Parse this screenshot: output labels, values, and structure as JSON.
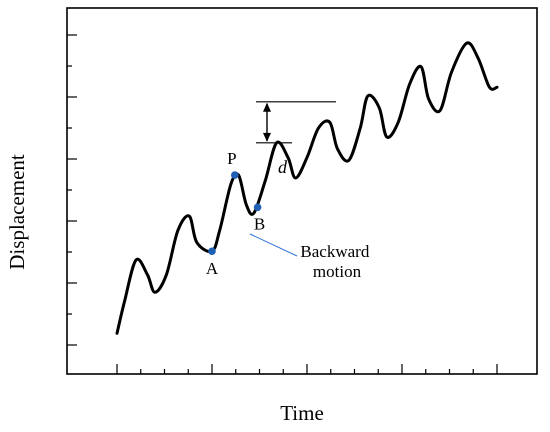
{
  "chart_data": {
    "type": "line",
    "xlabel": "Time",
    "ylabel": "Displacement",
    "grid": false,
    "curve": {
      "color": "#000000",
      "points": [
        [
          0.0,
          0.04
        ],
        [
          0.02,
          0.15
        ],
        [
          0.05,
          0.29
        ],
        [
          0.08,
          0.24
        ],
        [
          0.1,
          0.18
        ],
        [
          0.13,
          0.24
        ],
        [
          0.16,
          0.39
        ],
        [
          0.19,
          0.44
        ],
        [
          0.21,
          0.35
        ],
        [
          0.25,
          0.32
        ],
        [
          0.27,
          0.39
        ],
        [
          0.3,
          0.55
        ],
        [
          0.32,
          0.58
        ],
        [
          0.34,
          0.48
        ],
        [
          0.36,
          0.45
        ],
        [
          0.39,
          0.56
        ],
        [
          0.42,
          0.69
        ],
        [
          0.45,
          0.64
        ],
        [
          0.47,
          0.57
        ],
        [
          0.5,
          0.64
        ],
        [
          0.53,
          0.74
        ],
        [
          0.56,
          0.76
        ],
        [
          0.58,
          0.67
        ],
        [
          0.61,
          0.63
        ],
        [
          0.64,
          0.74
        ],
        [
          0.66,
          0.85
        ],
        [
          0.69,
          0.81
        ],
        [
          0.71,
          0.71
        ],
        [
          0.74,
          0.76
        ],
        [
          0.77,
          0.89
        ],
        [
          0.8,
          0.95
        ],
        [
          0.82,
          0.84
        ],
        [
          0.85,
          0.8
        ],
        [
          0.88,
          0.93
        ],
        [
          0.92,
          1.03
        ],
        [
          0.95,
          0.98
        ],
        [
          0.98,
          0.88
        ],
        [
          1.0,
          0.88
        ]
      ]
    },
    "points": [
      {
        "label": "A",
        "x": 0.25,
        "y": 0.32,
        "color": "#1f5fb3"
      },
      {
        "label": "P",
        "x": 0.31,
        "y": 0.58,
        "color": "#1f5fb3"
      },
      {
        "label": "B",
        "x": 0.37,
        "y": 0.47,
        "color": "#1f5fb3"
      }
    ],
    "annotations": {
      "backward_motion": "Backward\nmotion",
      "d_label": "d",
      "callout_color": "#2a6fd6"
    },
    "dimension": {
      "y_low": 0.69,
      "y_high": 0.83
    }
  }
}
